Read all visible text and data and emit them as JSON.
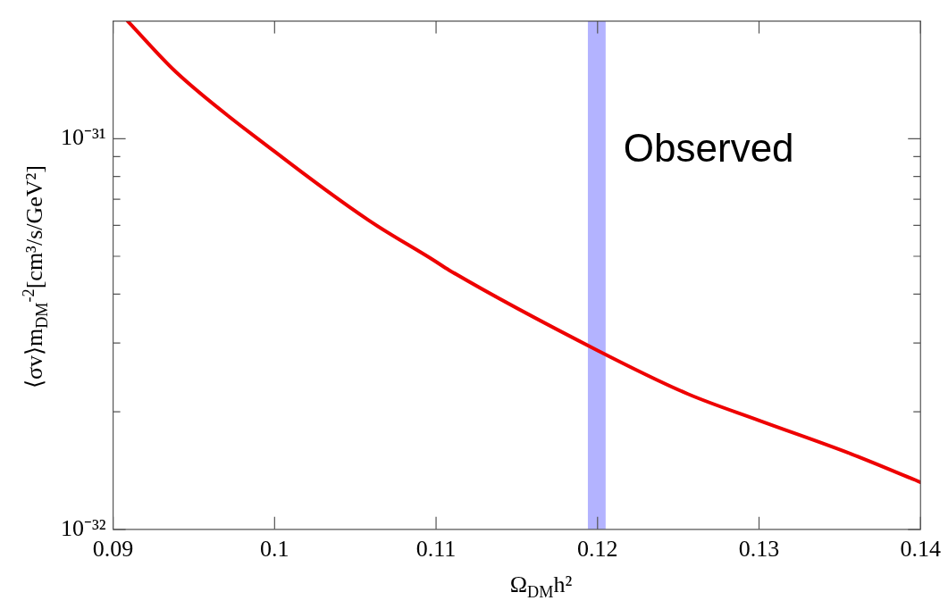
{
  "chart_data": {
    "type": "line",
    "xlabel": "Ω$_{DM}$h²",
    "ylabel": "⟨σv⟩m$_{DM}$$^{-2}$[cm³/s/GeV²]",
    "x": [
      0.0909,
      0.0939,
      0.1,
      0.1058,
      0.1099,
      0.1108,
      0.12,
      0.1256,
      0.13,
      0.1357,
      0.14
    ],
    "series": [
      {
        "color": "#ee0000",
        "values": [
          2e-31,
          1.48e-31,
          9.27e-32,
          6.19e-32,
          4.87e-32,
          4.61e-32,
          2.87e-32,
          2.22e-32,
          1.9e-32,
          1.56e-32,
          1.32e-32
        ]
      }
    ],
    "xlim": [
      0.09,
      0.14
    ],
    "xticks": [
      0.09,
      0.1,
      0.11,
      0.12,
      0.13,
      0.14
    ],
    "ylim": [
      1e-32,
      2e-31
    ],
    "yticks": [
      {
        "value": 1e-32,
        "label": "10⁻³²"
      },
      {
        "value": 2e-32,
        "label": null
      },
      {
        "value": 3e-32,
        "label": null
      },
      {
        "value": 4e-32,
        "label": null
      },
      {
        "value": 5e-32,
        "label": null
      },
      {
        "value": 6e-32,
        "label": null
      },
      {
        "value": 7e-32,
        "label": null
      },
      {
        "value": 8e-32,
        "label": null
      },
      {
        "value": 9e-32,
        "label": null
      },
      {
        "value": 1e-31,
        "label": "10⁻³¹"
      }
    ],
    "log": "y",
    "grid": false,
    "marker": "none",
    "line_style": "solid",
    "bands": [
      {
        "axis": "x",
        "from": 0.1194,
        "to": 0.1205,
        "label": "Observed",
        "color": "#b3b3ff"
      }
    ]
  }
}
